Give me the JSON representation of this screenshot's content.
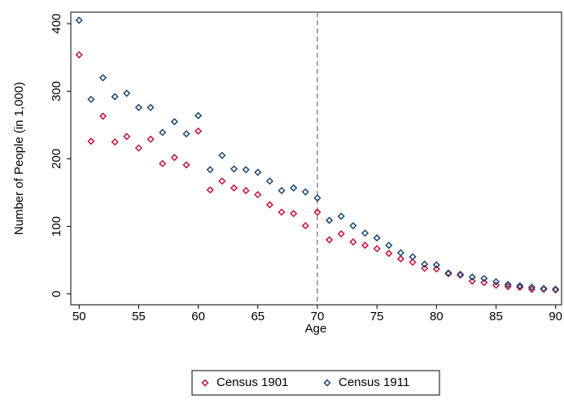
{
  "chart_data": {
    "type": "scatter",
    "x_label": "Age",
    "y_label": "Number of People (in 1,000)",
    "x": [
      50,
      51,
      52,
      53,
      54,
      55,
      56,
      57,
      58,
      59,
      60,
      61,
      62,
      63,
      64,
      65,
      66,
      67,
      68,
      69,
      70,
      71,
      72,
      73,
      74,
      75,
      76,
      77,
      78,
      79,
      80,
      81,
      82,
      83,
      84,
      85,
      86,
      87,
      88,
      89,
      90
    ],
    "series": [
      {
        "name": "Census 1901",
        "color": "#c8103e",
        "values": [
          354,
          226,
          263,
          225,
          233,
          216,
          229,
          193,
          202,
          191,
          241,
          154,
          167,
          157,
          153,
          147,
          132,
          121,
          119,
          101,
          121,
          80,
          89,
          77,
          72,
          67,
          60,
          52,
          47,
          38,
          37,
          30,
          28,
          19,
          17,
          13,
          11,
          10,
          7,
          7,
          6
        ]
      },
      {
        "name": "Census 1911",
        "color": "#1a476f",
        "values": [
          405,
          288,
          320,
          292,
          297,
          276,
          276,
          239,
          255,
          237,
          264,
          184,
          205,
          185,
          184,
          180,
          167,
          153,
          157,
          151,
          142,
          109,
          115,
          101,
          90,
          83,
          72,
          61,
          55,
          44,
          43,
          31,
          29,
          25,
          23,
          18,
          14,
          12,
          10,
          8,
          7
        ]
      }
    ],
    "xlim": [
      49.3,
      90.5
    ],
    "ylim": [
      -16,
      417
    ],
    "xticks": [
      50,
      55,
      60,
      65,
      70,
      75,
      80,
      85,
      90
    ],
    "yticks": [
      0,
      100,
      200,
      300,
      400
    ],
    "vline": 70,
    "vline_color": "#888888"
  }
}
